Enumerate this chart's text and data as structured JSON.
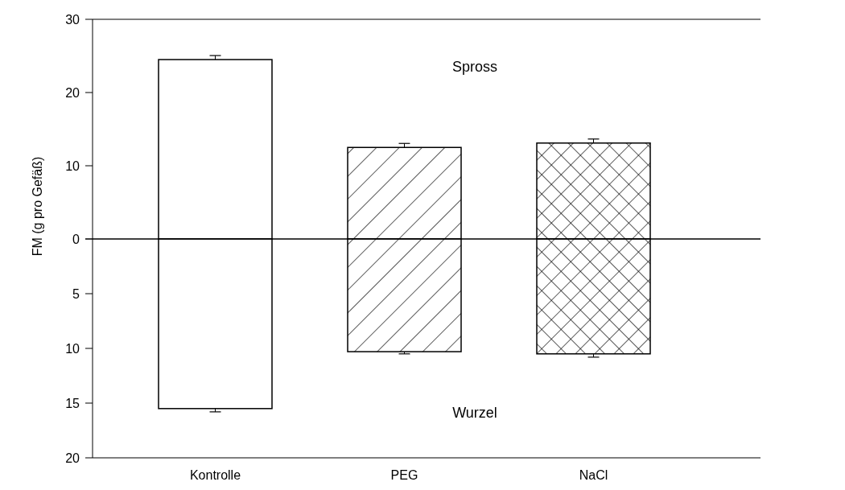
{
  "chart_data": [
    {
      "type": "bar",
      "ylabel": "FM (g pro Gefäß)",
      "categories": [
        null,
        null,
        null
      ],
      "values": [
        24.5,
        12.5,
        13.1
      ],
      "errors": [
        0.55,
        0.55,
        0.55
      ],
      "colors": [
        "#ffffff",
        "#ffffff",
        "#ffffff"
      ],
      "ylim": [
        0,
        30
      ],
      "yticks": [
        0,
        10,
        20,
        30
      ],
      "tick_labels": "y",
      "annotations": [
        "Spross"
      ],
      "grid": false
    },
    {
      "type": "bar",
      "categories": [
        "Kontrolle",
        "PEG",
        "NaCl"
      ],
      "values": [
        15.5,
        10.3,
        10.5
      ],
      "errors": [
        0.3,
        0.2,
        0.3
      ],
      "colors": [
        "#ffffff",
        "#ffffff",
        "#ffffff"
      ],
      "ylim": [
        20,
        0
      ],
      "yticks": [
        20,
        15,
        10,
        5,
        {
          "value": 0,
          "label": null
        }
      ],
      "annotations": [
        "Wurzel"
      ],
      "grid": false
    }
  ]
}
